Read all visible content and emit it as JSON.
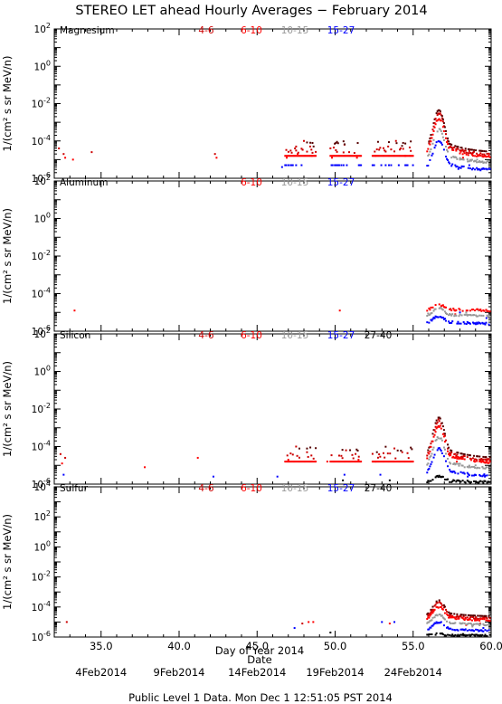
{
  "title": "STEREO LET ahead Hourly Averages − February 2014",
  "ylabel": "1/(cm² s sr MeV/n)",
  "xlabel": "Day of Year 2014",
  "date_label": "Date",
  "footer": "Public Level 1 Data. Mon Dec  1 12:51:05 PST 2014",
  "date_ticks": [
    {
      "day": 35.0,
      "label": "4Feb2014"
    },
    {
      "day": 40.0,
      "label": "9Feb2014"
    },
    {
      "day": 45.0,
      "label": "14Feb2014"
    },
    {
      "day": 50.0,
      "label": "19Feb2014"
    },
    {
      "day": 55.0,
      "label": "24Feb2014"
    }
  ],
  "colors": {
    "4-6": "#cc0000",
    "6-10": "#ff0000",
    "10-15": "#999999",
    "15-27": "#0000ff",
    "27-40": "#000000",
    "dark": "#550000"
  },
  "chart_data": [
    {
      "type": "scatter",
      "panel": "Magnesium",
      "xlim": [
        32,
        60
      ],
      "yscale": "log",
      "ylim_exp": [
        -6,
        2
      ],
      "xticks": [
        "35.0",
        "40.0",
        "45.0",
        "50.0",
        "55.0",
        "60.0"
      ],
      "show_xtick_labels": false,
      "legend": [
        "4-6",
        "6-10",
        "10-15",
        "15-27"
      ],
      "event_peaks": {
        "4-6": -2.5,
        "6-10": -2.8,
        "10-15": -3.4,
        "15-27": -4.0
      },
      "series": [
        {
          "name": "4-6",
          "points": [
            [
              32.3,
              -4.4
            ],
            [
              32.6,
              -4.7
            ],
            [
              34.4,
              -4.6
            ],
            [
              42.3,
              -4.7
            ],
            [
              47.5,
              -4.3
            ],
            [
              48.0,
              -4.0
            ],
            [
              48.4,
              -4.3
            ],
            [
              50.6,
              -4.2
            ],
            [
              50.9,
              -4.6
            ],
            [
              53.4,
              -4.3
            ],
            [
              53.9,
              -4.0
            ],
            [
              54.2,
              -4.4
            ]
          ]
        },
        {
          "name": "6-10",
          "points": [
            [
              33.2,
              -5.0
            ],
            [
              32.7,
              -4.9
            ],
            [
              42.4,
              -4.9
            ],
            [
              46.9,
              -4.9
            ],
            [
              47.6,
              -4.7
            ],
            [
              48.5,
              -4.8
            ],
            [
              49.8,
              -4.9
            ],
            [
              51.4,
              -4.9
            ],
            [
              52.6,
              -4.8
            ],
            [
              54.5,
              -4.8
            ],
            [
              58.2,
              -4.9
            ],
            [
              58.8,
              -4.7
            ],
            [
              59.6,
              -4.8
            ]
          ]
        },
        {
          "name": "10-15",
          "points": [
            [
              58.0,
              -5.0
            ],
            [
              58.5,
              -5.1
            ],
            [
              59.1,
              -5.0
            ]
          ]
        },
        {
          "name": "15-27",
          "points": [
            [
              46.6,
              -5.4
            ],
            [
              50.4,
              -5.3
            ],
            [
              52.5,
              -5.3
            ],
            [
              57.9,
              -5.5
            ],
            [
              58.6,
              -5.3
            ],
            [
              59.4,
              -5.5
            ]
          ]
        }
      ]
    },
    {
      "type": "scatter",
      "panel": "Aluminum",
      "xlim": [
        32,
        60
      ],
      "yscale": "log",
      "ylim_exp": [
        -6,
        2
      ],
      "xticks": [
        "35.0",
        "40.0",
        "45.0",
        "50.0",
        "55.0",
        "60.0"
      ],
      "show_xtick_labels": false,
      "legend": [
        "6-10",
        "10-15",
        "15-27"
      ],
      "event_peaks": {
        "6-10": -4.6,
        "10-15": -4.8,
        "15-27": -5.2
      },
      "series": [
        {
          "name": "6-10",
          "points": [
            [
              33.3,
              -4.9
            ],
            [
              50.3,
              -4.9
            ],
            [
              57.7,
              -5.1
            ]
          ]
        },
        {
          "name": "10-15",
          "points": [
            [
              57.4,
              -4.8
            ],
            [
              58.4,
              -5.0
            ],
            [
              59.2,
              -4.9
            ]
          ]
        },
        {
          "name": "15-27",
          "points": [
            [
              58.0,
              -5.0
            ],
            [
              59.7,
              -5.3
            ]
          ]
        }
      ]
    },
    {
      "type": "scatter",
      "panel": "Silicon",
      "xlim": [
        32,
        60
      ],
      "yscale": "log",
      "ylim_exp": [
        -6,
        2
      ],
      "xticks": [
        "35.0",
        "40.0",
        "45.0",
        "50.0",
        "55.0",
        "60.0"
      ],
      "show_xtick_labels": false,
      "legend": [
        "4-6",
        "6-10",
        "10-15",
        "15-27",
        "27-40"
      ],
      "event_peaks": {
        "4-6": -2.6,
        "6-10": -2.9,
        "10-15": -3.5,
        "15-27": -4.1,
        "27-40": -5.6
      },
      "series": [
        {
          "name": "4-6",
          "points": [
            [
              32.4,
              -4.4
            ],
            [
              32.7,
              -4.6
            ],
            [
              47.5,
              -4.0
            ],
            [
              48.2,
              -4.3
            ],
            [
              50.7,
              -4.2
            ],
            [
              53.8,
              -4.1
            ],
            [
              54.3,
              -4.3
            ]
          ]
        },
        {
          "name": "6-10",
          "points": [
            [
              32.5,
              -4.9
            ],
            [
              37.8,
              -5.1
            ],
            [
              41.2,
              -4.6
            ],
            [
              47.0,
              -4.7
            ],
            [
              49.5,
              -4.8
            ],
            [
              51.5,
              -4.7
            ],
            [
              52.6,
              -4.8
            ],
            [
              57.8,
              -4.8
            ],
            [
              59.5,
              -4.8
            ]
          ]
        },
        {
          "name": "10-15",
          "points": [
            [
              58.3,
              -5.1
            ],
            [
              59.0,
              -5.0
            ]
          ]
        },
        {
          "name": "15-27",
          "points": [
            [
              32.6,
              -5.5
            ],
            [
              42.2,
              -5.6
            ],
            [
              46.3,
              -5.6
            ],
            [
              50.6,
              -5.5
            ],
            [
              52.9,
              -5.5
            ],
            [
              58.5,
              -5.6
            ],
            [
              59.6,
              -5.6
            ]
          ]
        },
        {
          "name": "27-40",
          "points": [
            [
              50.5,
              -5.8
            ],
            [
              53.5,
              -5.8
            ]
          ]
        }
      ]
    },
    {
      "type": "scatter",
      "panel": "Sulfur",
      "xlim": [
        32,
        60
      ],
      "yscale": "log",
      "ylim_exp": [
        -6,
        4
      ],
      "xticks": [
        "35.0",
        "40.0",
        "45.0",
        "50.0",
        "55.0",
        "60.0"
      ],
      "show_xtick_labels": true,
      "legend": [
        "4-6",
        "6-10",
        "10-15",
        "15-27",
        "27-40"
      ],
      "event_peaks": {
        "4-6": -3.7,
        "6-10": -4.0,
        "10-15": -4.5,
        "15-27": -5.0,
        "27-40": -5.8
      },
      "series": [
        {
          "name": "4-6",
          "points": [
            [
              32.8,
              -5.0
            ],
            [
              47.9,
              -5.1
            ]
          ]
        },
        {
          "name": "6-10",
          "points": [
            [
              48.3,
              -5.0
            ],
            [
              48.6,
              -5.0
            ],
            [
              53.5,
              -5.1
            ],
            [
              58.4,
              -5.2
            ],
            [
              59.3,
              -5.1
            ]
          ]
        },
        {
          "name": "10-15",
          "points": [
            [
              58.8,
              -5.3
            ]
          ]
        },
        {
          "name": "15-27",
          "points": [
            [
              47.4,
              -5.4
            ],
            [
              53.0,
              -5.0
            ],
            [
              53.8,
              -5.0
            ],
            [
              59.5,
              -5.4
            ]
          ]
        },
        {
          "name": "27-40",
          "points": [
            [
              49.7,
              -5.7
            ],
            [
              58.2,
              -5.8
            ]
          ]
        }
      ]
    }
  ]
}
